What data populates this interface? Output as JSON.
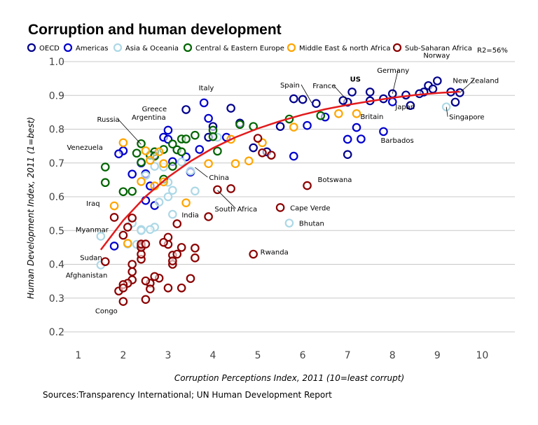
{
  "chart_data": {
    "type": "scatter",
    "title": "Corruption and human development",
    "xlabel": "Corruption Perceptions Index, 2011 (10=least corrupt)",
    "ylabel": "Human Development Index, 2011 (1=best)",
    "xlim": [
      0.3,
      10.4
    ],
    "ylim": [
      0.18,
      1.02
    ],
    "x_ticks": [
      "1",
      "2",
      "3",
      "4",
      "5",
      "6",
      "7",
      "8",
      "9",
      "10"
    ],
    "y_ticks": [
      "0.2",
      "0.3",
      "0.4",
      "0.5",
      "0.6",
      "0.7",
      "0.8",
      "0.9",
      "1.0"
    ],
    "x_tick_values": [
      1,
      2,
      3,
      4,
      5,
      6,
      7,
      8,
      9,
      10
    ],
    "y_tick_values": [
      0.2,
      0.3,
      0.4,
      0.5,
      0.6,
      0.7,
      0.8,
      0.9,
      1.0
    ],
    "grid": "horizontal",
    "legend_position": "top",
    "r2_label": "R2=56%",
    "source": "Sources:Transparency International; UN Human Development Report",
    "series": [
      {
        "name": "OECD",
        "color": "#00008b",
        "points": [
          [
            9.5,
            0.908
          ],
          [
            9.0,
            0.943
          ],
          [
            8.8,
            0.929
          ],
          [
            8.7,
            0.91
          ],
          [
            8.6,
            0.905
          ],
          [
            8.4,
            0.87
          ],
          [
            8.0,
            0.905
          ],
          [
            7.8,
            0.89
          ],
          [
            7.5,
            0.884
          ],
          [
            7.5,
            0.91
          ],
          [
            7.1,
            0.91
          ],
          [
            7.0,
            0.88
          ],
          [
            6.9,
            0.885
          ],
          [
            6.3,
            0.876
          ],
          [
            6.0,
            0.888
          ],
          [
            5.8,
            0.89
          ],
          [
            5.5,
            0.808
          ],
          [
            4.9,
            0.745
          ],
          [
            4.4,
            0.862
          ],
          [
            4.0,
            0.808
          ],
          [
            3.9,
            0.776
          ],
          [
            3.4,
            0.858
          ],
          [
            9.3,
            0.91
          ],
          [
            9.4,
            0.88
          ],
          [
            8.3,
            0.901
          ],
          [
            8.9,
            0.919
          ],
          [
            7.0,
            0.725
          ],
          [
            5.2,
            0.733
          ],
          [
            4.6,
            0.818
          ]
        ]
      },
      {
        "name": "Americas",
        "color": "#0000cd",
        "points": [
          [
            7.8,
            0.793
          ],
          [
            7.2,
            0.805
          ],
          [
            7.3,
            0.771
          ],
          [
            7.0,
            0.77
          ],
          [
            6.1,
            0.811
          ],
          [
            4.3,
            0.776
          ],
          [
            3.9,
            0.832
          ],
          [
            3.8,
            0.878
          ],
          [
            3.7,
            0.74
          ],
          [
            3.4,
            0.718
          ],
          [
            3.2,
            0.739
          ],
          [
            3.0,
            0.797
          ],
          [
            2.9,
            0.776
          ],
          [
            2.7,
            0.723
          ],
          [
            2.5,
            0.668
          ],
          [
            2.4,
            0.7
          ],
          [
            2.2,
            0.667
          ],
          [
            2.0,
            0.736
          ],
          [
            1.9,
            0.727
          ],
          [
            2.6,
            0.632
          ],
          [
            2.5,
            0.589
          ],
          [
            2.7,
            0.574
          ],
          [
            1.8,
            0.454
          ],
          [
            3.1,
            0.704
          ],
          [
            3.0,
            0.77
          ],
          [
            6.5,
            0.836
          ],
          [
            3.5,
            0.673
          ],
          [
            5.8,
            0.72
          ],
          [
            8.0,
            0.881
          ]
        ]
      },
      {
        "name": "Asia & Oceania",
        "color": "#add8e6",
        "points": [
          [
            9.2,
            0.866
          ],
          [
            5.7,
            0.522
          ],
          [
            3.6,
            0.617
          ],
          [
            3.1,
            0.619
          ],
          [
            3.0,
            0.643
          ],
          [
            2.9,
            0.688
          ],
          [
            2.7,
            0.51
          ],
          [
            2.6,
            0.503
          ],
          [
            2.4,
            0.503
          ],
          [
            2.3,
            0.459
          ],
          [
            2.2,
            0.522
          ],
          [
            2.5,
            0.663
          ],
          [
            3.5,
            0.676
          ],
          [
            3.1,
            0.548
          ],
          [
            1.5,
            0.483
          ],
          [
            1.5,
            0.398
          ],
          [
            2.1,
            0.46
          ],
          [
            2.8,
            0.584
          ],
          [
            2.4,
            0.5
          ],
          [
            3.3,
            0.703
          ],
          [
            4.1,
            0.776
          ],
          [
            2.7,
            0.69
          ],
          [
            3.0,
            0.6
          ]
        ]
      },
      {
        "name": "Central & Eastern Europe",
        "color": "#006400",
        "points": [
          [
            6.4,
            0.84
          ],
          [
            5.7,
            0.83
          ],
          [
            4.6,
            0.814
          ],
          [
            4.0,
            0.797
          ],
          [
            4.0,
            0.778
          ],
          [
            3.6,
            0.782
          ],
          [
            3.3,
            0.771
          ],
          [
            3.2,
            0.739
          ],
          [
            3.1,
            0.756
          ],
          [
            2.9,
            0.74
          ],
          [
            2.7,
            0.733
          ],
          [
            2.6,
            0.723
          ],
          [
            2.4,
            0.757
          ],
          [
            2.4,
            0.702
          ],
          [
            2.3,
            0.729
          ],
          [
            2.2,
            0.616
          ],
          [
            2.0,
            0.615
          ],
          [
            1.6,
            0.688
          ],
          [
            1.6,
            0.642
          ],
          [
            3.3,
            0.733
          ],
          [
            4.1,
            0.735
          ],
          [
            2.9,
            0.652
          ],
          [
            2.7,
            0.72
          ],
          [
            3.1,
            0.69
          ],
          [
            3.4,
            0.771
          ],
          [
            4.9,
            0.808
          ]
        ]
      },
      {
        "name": "Middle East & north Africa",
        "color": "#ffa500",
        "points": [
          [
            7.2,
            0.846
          ],
          [
            6.8,
            0.846
          ],
          [
            5.8,
            0.806
          ],
          [
            5.1,
            0.76
          ],
          [
            4.4,
            0.77
          ],
          [
            4.8,
            0.706
          ],
          [
            4.5,
            0.698
          ],
          [
            3.9,
            0.698
          ],
          [
            2.9,
            0.644
          ],
          [
            2.8,
            0.733
          ],
          [
            2.6,
            0.708
          ],
          [
            2.5,
            0.736
          ],
          [
            2.4,
            0.645
          ],
          [
            2.0,
            0.76
          ],
          [
            1.8,
            0.573
          ],
          [
            2.1,
            0.462
          ],
          [
            2.9,
            0.698
          ],
          [
            3.4,
            0.582
          ],
          [
            2.7,
            0.632
          ]
        ]
      },
      {
        "name": "Sub-Saharan Africa",
        "color": "#8b0000",
        "points": [
          [
            6.1,
            0.633
          ],
          [
            5.5,
            0.568
          ],
          [
            5.0,
            0.773
          ],
          [
            4.9,
            0.43
          ],
          [
            4.4,
            0.624
          ],
          [
            4.1,
            0.621
          ],
          [
            3.9,
            0.541
          ],
          [
            3.6,
            0.419
          ],
          [
            3.6,
            0.448
          ],
          [
            3.5,
            0.358
          ],
          [
            3.3,
            0.33
          ],
          [
            3.3,
            0.45
          ],
          [
            3.2,
            0.52
          ],
          [
            3.1,
            0.427
          ],
          [
            3.1,
            0.4
          ],
          [
            3.0,
            0.459
          ],
          [
            3.0,
            0.48
          ],
          [
            3.0,
            0.33
          ],
          [
            2.9,
            0.465
          ],
          [
            2.8,
            0.359
          ],
          [
            2.7,
            0.364
          ],
          [
            2.6,
            0.344
          ],
          [
            2.6,
            0.327
          ],
          [
            2.5,
            0.296
          ],
          [
            2.5,
            0.351
          ],
          [
            2.4,
            0.455
          ],
          [
            2.4,
            0.415
          ],
          [
            2.4,
            0.43
          ],
          [
            2.4,
            0.45
          ],
          [
            2.4,
            0.46
          ],
          [
            2.2,
            0.4
          ],
          [
            2.2,
            0.378
          ],
          [
            2.2,
            0.354
          ],
          [
            2.1,
            0.344
          ],
          [
            2.0,
            0.34
          ],
          [
            2.0,
            0.29
          ],
          [
            1.9,
            0.321
          ],
          [
            2.1,
            0.51
          ],
          [
            2.2,
            0.537
          ],
          [
            1.8,
            0.539
          ],
          [
            1.6,
            0.408
          ],
          [
            2.0,
            0.33
          ],
          [
            2.0,
            0.486
          ],
          [
            2.5,
            0.46
          ],
          [
            3.1,
            0.41
          ],
          [
            3.2,
            0.43
          ],
          [
            5.3,
            0.723
          ],
          [
            5.1,
            0.73
          ]
        ]
      }
    ],
    "trend_line": [
      [
        1.5,
        0.443
      ],
      [
        2.0,
        0.53
      ],
      [
        2.5,
        0.601
      ],
      [
        3.0,
        0.658
      ],
      [
        3.5,
        0.705
      ],
      [
        4.0,
        0.744
      ],
      [
        4.5,
        0.776
      ],
      [
        5.0,
        0.802
      ],
      [
        5.5,
        0.824
      ],
      [
        6.0,
        0.843
      ],
      [
        6.5,
        0.859
      ],
      [
        7.0,
        0.872
      ],
      [
        7.5,
        0.883
      ],
      [
        8.0,
        0.893
      ],
      [
        8.5,
        0.901
      ],
      [
        9.0,
        0.907
      ],
      [
        9.5,
        0.911
      ]
    ],
    "annotations": [
      {
        "text": "Norway",
        "x": 9.0,
        "y": 0.943,
        "bold": false
      },
      {
        "text": "New Zealand",
        "x": 9.5,
        "y": 0.908,
        "bold": false
      },
      {
        "text": "Germany",
        "x": 8.0,
        "y": 0.905,
        "bold": false
      },
      {
        "text": "Japan",
        "x": 8.0,
        "y": 0.901,
        "bold": false
      },
      {
        "text": "Singapore",
        "x": 9.2,
        "y": 0.866,
        "bold": false
      },
      {
        "text": "Britain",
        "x": 7.8,
        "y": 0.863,
        "bold": false
      },
      {
        "text": "Barbados",
        "x": 7.8,
        "y": 0.793,
        "bold": false
      },
      {
        "text": "US",
        "x": 7.1,
        "y": 0.91,
        "bold": true
      },
      {
        "text": "France",
        "x": 7.0,
        "y": 0.884,
        "bold": false
      },
      {
        "text": "Spain",
        "x": 6.2,
        "y": 0.878,
        "bold": false
      },
      {
        "text": "Italy",
        "x": 3.9,
        "y": 0.874,
        "bold": false
      },
      {
        "text": "Greece",
        "x": 3.4,
        "y": 0.861,
        "bold": false
      },
      {
        "text": "Argentina",
        "x": 3.0,
        "y": 0.797,
        "bold": false
      },
      {
        "text": "Russia",
        "x": 2.4,
        "y": 0.755,
        "bold": false
      },
      {
        "text": "Venezuela",
        "x": 1.9,
        "y": 0.735,
        "bold": false
      },
      {
        "text": "China",
        "x": 3.6,
        "y": 0.687,
        "bold": false
      },
      {
        "text": "Botswana",
        "x": 6.1,
        "y": 0.633,
        "bold": false
      },
      {
        "text": "South Africa",
        "x": 4.1,
        "y": 0.619,
        "bold": false
      },
      {
        "text": "Cape Verde",
        "x": 5.5,
        "y": 0.568,
        "bold": false
      },
      {
        "text": "Iraq",
        "x": 1.8,
        "y": 0.573,
        "bold": false
      },
      {
        "text": "India",
        "x": 3.1,
        "y": 0.547,
        "bold": false
      },
      {
        "text": "Bhutan",
        "x": 5.7,
        "y": 0.522,
        "bold": false
      },
      {
        "text": "Myanmar",
        "x": 1.5,
        "y": 0.483,
        "bold": false
      },
      {
        "text": "Rwanda",
        "x": 4.9,
        "y": 0.429,
        "bold": false
      },
      {
        "text": "Sudan",
        "x": 1.6,
        "y": 0.408,
        "bold": false
      },
      {
        "text": "Afghanistan",
        "x": 1.5,
        "y": 0.398,
        "bold": false
      },
      {
        "text": "Congo",
        "x": 2.0,
        "y": 0.286,
        "bold": false
      }
    ]
  }
}
